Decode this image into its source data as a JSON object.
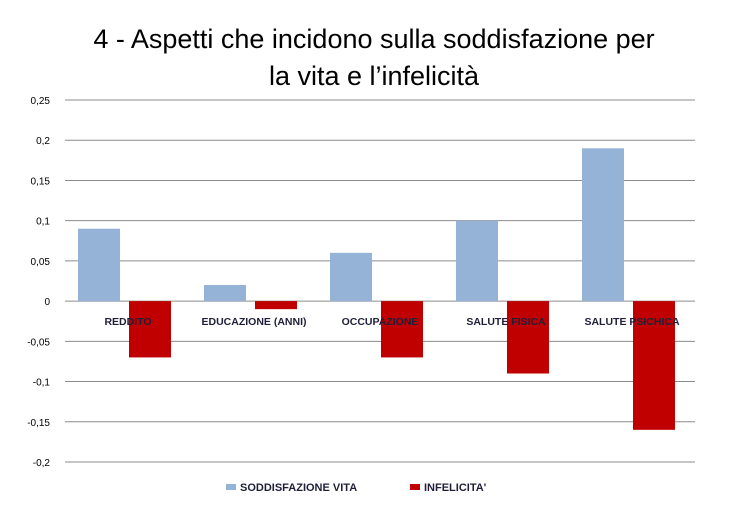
{
  "chart_data": {
    "type": "bar",
    "title_lines": [
      "4 - Aspetti che incidono sulla soddisfazione per",
      "la vita e l’infelicità"
    ],
    "categories": [
      "REDDITO",
      "EDUCAZIONE (ANNI)",
      "OCCUPAZIONE",
      "SALUTE FISICA",
      "SALUTE PSICHICA"
    ],
    "series": [
      {
        "name": "SODDISFAZIONE VITA",
        "color": "#95b3d7",
        "values": [
          0.09,
          0.02,
          0.06,
          0.1,
          0.19
        ]
      },
      {
        "name": "INFELICITA'",
        "color": "#c00000",
        "values": [
          -0.07,
          -0.01,
          -0.07,
          -0.09,
          -0.16
        ]
      }
    ],
    "yticks": [
      "0,25",
      "0,2",
      "0,15",
      "0,1",
      "0,05",
      "0",
      "-0,05",
      "-0,1",
      "-0,15",
      "-0,2"
    ],
    "ytick_values": [
      0.25,
      0.2,
      0.15,
      0.1,
      0.05,
      0,
      -0.05,
      -0.1,
      -0.15,
      -0.2
    ],
    "ylim": [
      -0.2,
      0.25
    ],
    "grid": true,
    "legend": "bottom",
    "xlabel": "",
    "ylabel": ""
  }
}
